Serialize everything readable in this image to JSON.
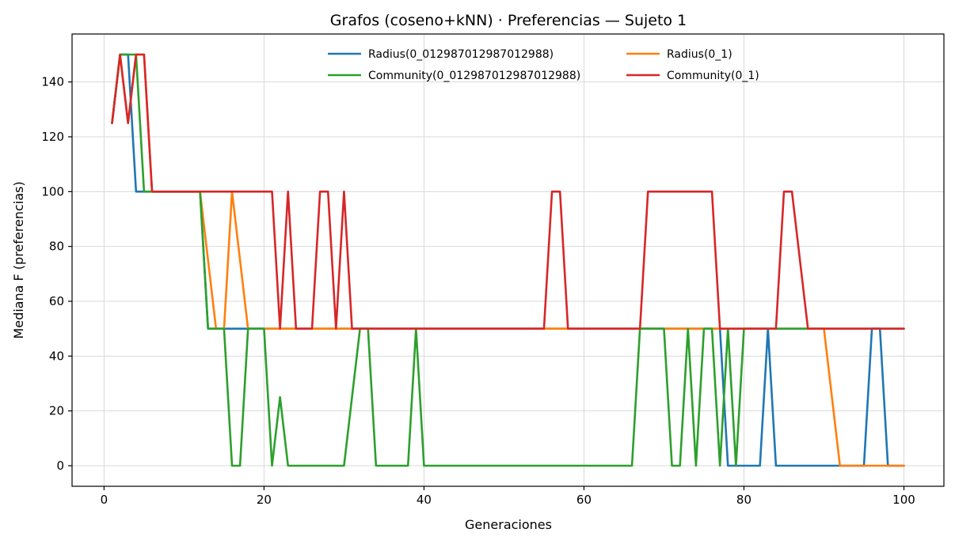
{
  "chart_data": {
    "type": "line",
    "title": "Grafos (coseno+kNN) · Preferencias — Sujeto 1",
    "xlabel": "Generaciones",
    "ylabel": "Mediana F (preferencias)",
    "xlim": [
      -4,
      105
    ],
    "ylim": [
      -7.5,
      157.5
    ],
    "xticks": [
      0,
      20,
      40,
      60,
      80,
      100
    ],
    "yticks": [
      0,
      20,
      40,
      60,
      80,
      100,
      120,
      140
    ],
    "grid": true,
    "legend_position": "top-right",
    "legend_columns": 2,
    "x": [
      1,
      2,
      3,
      4,
      5,
      6,
      7,
      8,
      9,
      10,
      11,
      12,
      13,
      14,
      15,
      16,
      17,
      18,
      19,
      20,
      21,
      22,
      23,
      24,
      25,
      26,
      27,
      28,
      29,
      30,
      31,
      32,
      33,
      34,
      35,
      36,
      37,
      38,
      39,
      40,
      41,
      42,
      43,
      44,
      45,
      46,
      47,
      48,
      49,
      50,
      51,
      52,
      53,
      54,
      55,
      56,
      57,
      58,
      59,
      60,
      61,
      62,
      63,
      64,
      65,
      66,
      67,
      68,
      69,
      70,
      71,
      72,
      73,
      74,
      75,
      76,
      77,
      78,
      79,
      80,
      81,
      82,
      83,
      84,
      85,
      86,
      87,
      88,
      89,
      90,
      91,
      92,
      93,
      94,
      95,
      96,
      97,
      98,
      99,
      100
    ],
    "series": [
      {
        "name": "Radius(0_012987012987012988)",
        "color": "#1f77b4",
        "values": [
          125,
          150,
          150,
          100,
          100,
          100,
          100,
          100,
          100,
          100,
          100,
          100,
          50,
          50,
          50,
          50,
          50,
          50,
          50,
          50,
          50,
          50,
          50,
          50,
          50,
          50,
          50,
          50,
          50,
          50,
          50,
          50,
          50,
          50,
          50,
          50,
          50,
          50,
          50,
          50,
          50,
          50,
          50,
          50,
          50,
          50,
          50,
          50,
          50,
          50,
          50,
          50,
          50,
          50,
          50,
          50,
          50,
          50,
          50,
          50,
          50,
          50,
          50,
          50,
          50,
          50,
          50,
          50,
          50,
          50,
          50,
          50,
          50,
          50,
          50,
          50,
          50,
          0,
          0,
          0,
          0,
          0,
          50,
          0,
          0,
          0,
          0,
          0,
          0,
          0,
          0,
          0,
          0,
          0,
          0,
          50,
          50,
          0,
          0,
          0
        ]
      },
      {
        "name": "Radius(0_1)",
        "color": "#ff7f0e",
        "values": [
          125,
          150,
          125,
          150,
          150,
          100,
          100,
          100,
          100,
          100,
          100,
          100,
          75,
          50,
          50,
          100,
          75,
          50,
          50,
          50,
          50,
          50,
          50,
          50,
          50,
          50,
          50,
          50,
          50,
          50,
          50,
          50,
          50,
          50,
          50,
          50,
          50,
          50,
          50,
          50,
          50,
          50,
          50,
          50,
          50,
          50,
          50,
          50,
          50,
          50,
          50,
          50,
          50,
          50,
          50,
          50,
          50,
          50,
          50,
          50,
          50,
          50,
          50,
          50,
          50,
          50,
          50,
          50,
          50,
          50,
          50,
          50,
          50,
          50,
          50,
          50,
          50,
          50,
          50,
          50,
          50,
          50,
          50,
          50,
          50,
          50,
          50,
          50,
          50,
          50,
          25,
          0,
          0,
          0,
          0,
          0,
          0,
          0,
          0,
          0
        ]
      },
      {
        "name": "Community(0_012987012987012988)",
        "color": "#2ca02c",
        "values": [
          125,
          150,
          150,
          150,
          100,
          100,
          100,
          100,
          100,
          100,
          100,
          100,
          50,
          50,
          50,
          0,
          0,
          50,
          50,
          50,
          0,
          25,
          0,
          0,
          0,
          0,
          0,
          0,
          0,
          0,
          25,
          50,
          50,
          0,
          0,
          0,
          0,
          0,
          50,
          0,
          0,
          0,
          0,
          0,
          0,
          0,
          0,
          0,
          0,
          0,
          0,
          0,
          0,
          0,
          0,
          0,
          0,
          0,
          0,
          0,
          0,
          0,
          0,
          0,
          0,
          0,
          50,
          50,
          50,
          50,
          0,
          0,
          50,
          0,
          50,
          50,
          0,
          50,
          0,
          50,
          50,
          50,
          50,
          50,
          50,
          50,
          50,
          50,
          50,
          50,
          50,
          50,
          50,
          50,
          50,
          50,
          50,
          50,
          50,
          50
        ]
      },
      {
        "name": "Community(0_1)",
        "color": "#d62728",
        "values": [
          125,
          150,
          125,
          150,
          150,
          100,
          100,
          100,
          100,
          100,
          100,
          100,
          100,
          100,
          100,
          100,
          100,
          100,
          100,
          100,
          100,
          50,
          100,
          50,
          50,
          50,
          100,
          100,
          50,
          100,
          50,
          50,
          50,
          50,
          50,
          50,
          50,
          50,
          50,
          50,
          50,
          50,
          50,
          50,
          50,
          50,
          50,
          50,
          50,
          50,
          50,
          50,
          50,
          50,
          50,
          100,
          100,
          50,
          50,
          50,
          50,
          50,
          50,
          50,
          50,
          50,
          50,
          100,
          100,
          100,
          100,
          100,
          100,
          100,
          100,
          100,
          50,
          50,
          50,
          50,
          50,
          50,
          50,
          50,
          100,
          100,
          75,
          50,
          50,
          50,
          50,
          50,
          50,
          50,
          50,
          50,
          50,
          50,
          50,
          50
        ]
      }
    ]
  }
}
